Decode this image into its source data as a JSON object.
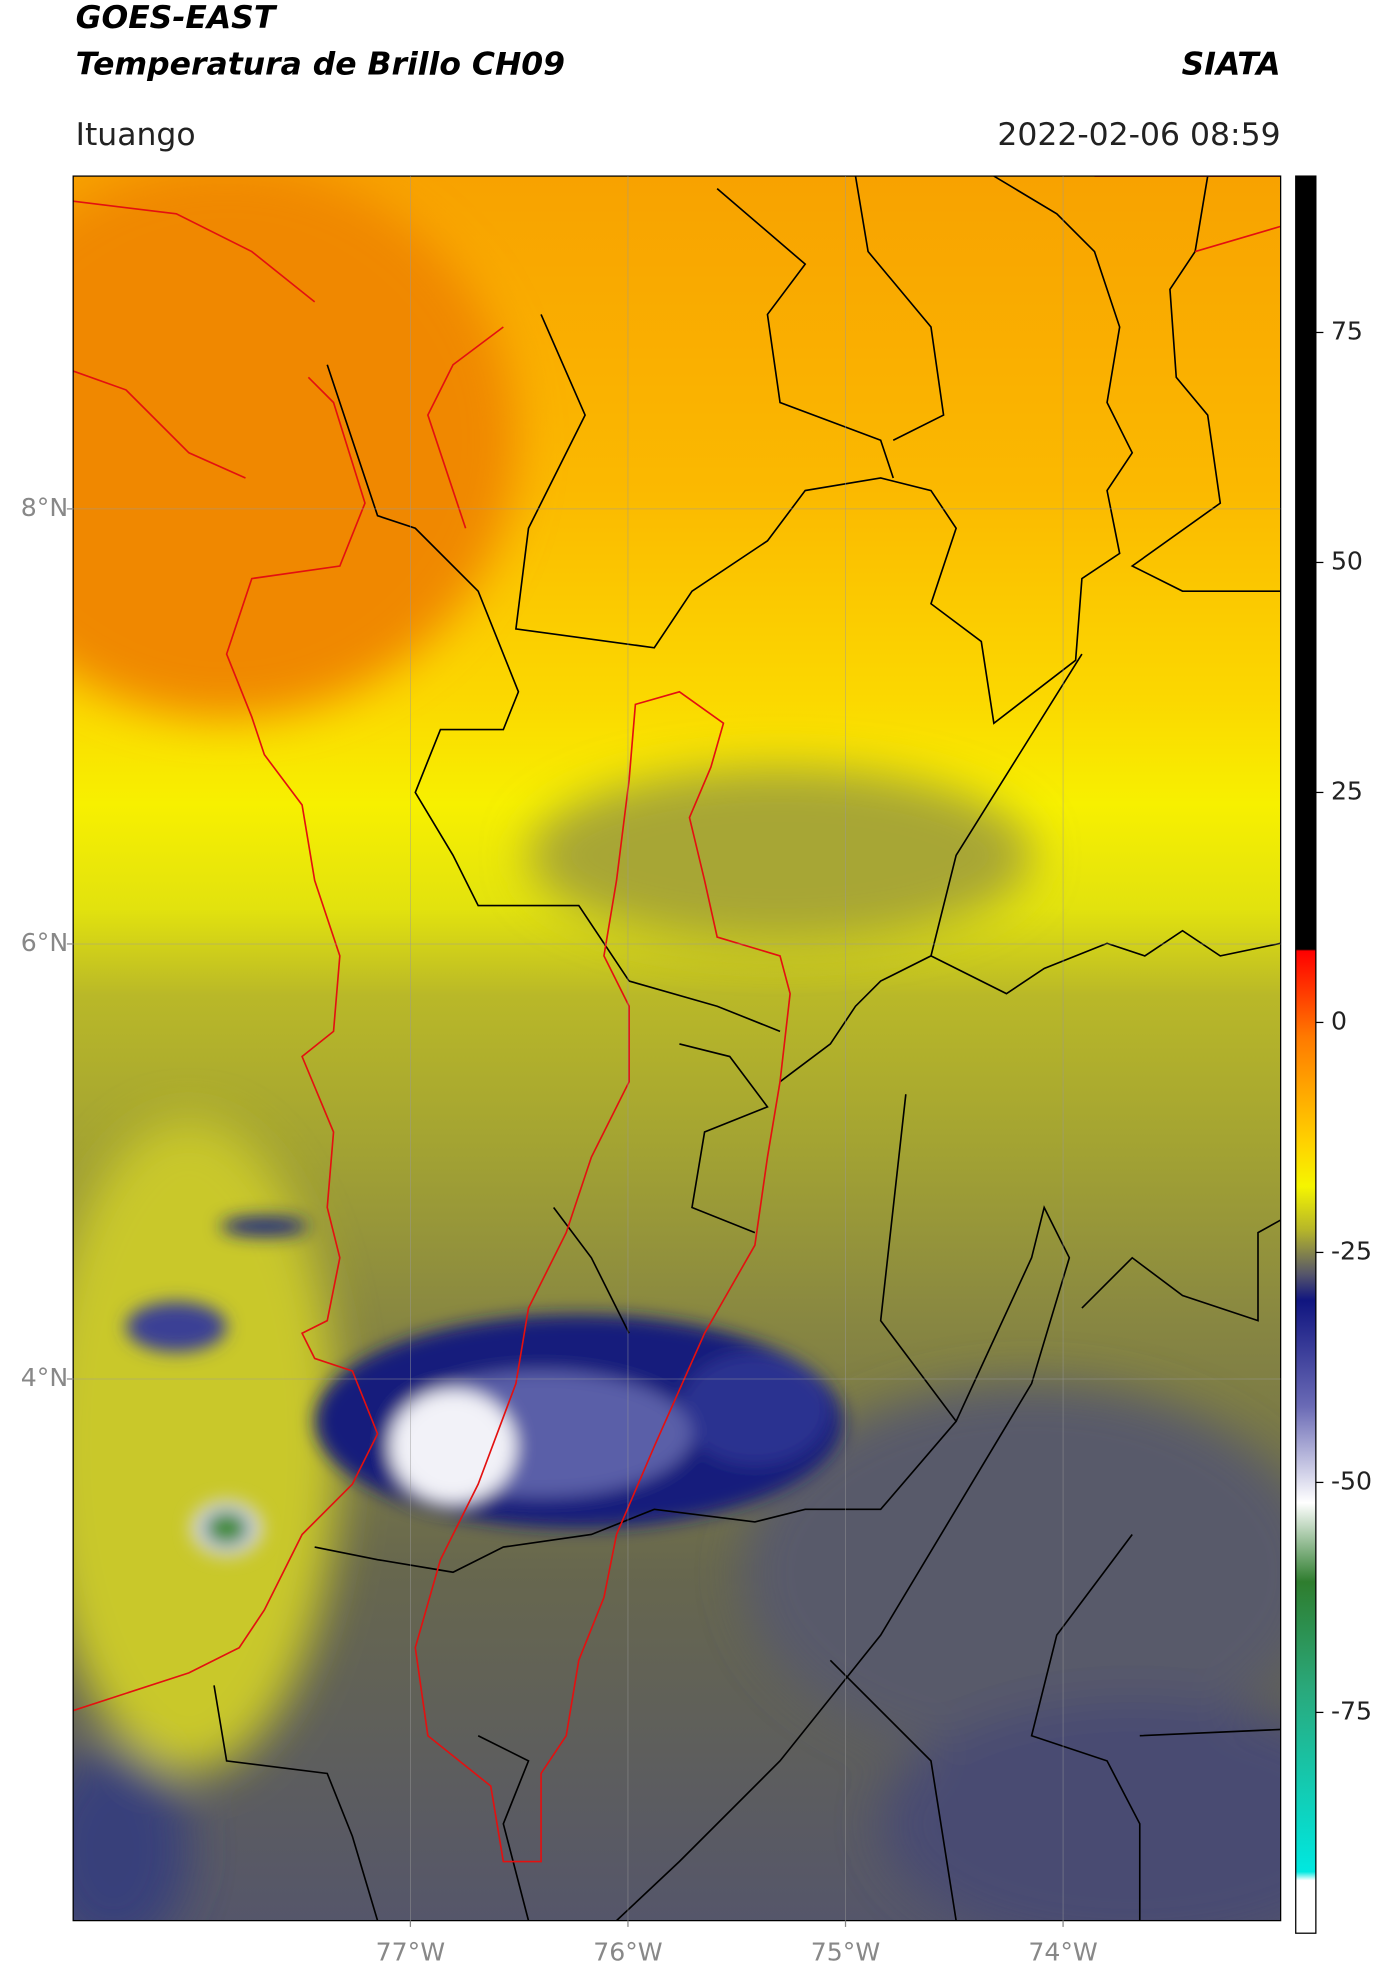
{
  "header": {
    "title": "GOES-EAST",
    "subtitle": "Temperatura de Brillo CH09",
    "brand": "SIATA",
    "location": "Ituango",
    "datetime": "2022-02-06 08:59"
  },
  "map": {
    "xlim": [
      -78.55,
      -73.0
    ],
    "ylim": [
      1.51,
      9.53
    ],
    "xticks": [
      {
        "value": -77,
        "label": "77°W"
      },
      {
        "value": -76,
        "label": "76°W"
      },
      {
        "value": -75,
        "label": "75°W"
      },
      {
        "value": -74,
        "label": "74°W"
      }
    ],
    "yticks": [
      {
        "value": 4,
        "label": "4°N"
      },
      {
        "value": 6,
        "label": "6°N"
      },
      {
        "value": 8,
        "label": "8°N"
      }
    ],
    "grid": true
  },
  "colorbar": {
    "lim": [
      -99,
      92
    ],
    "ticks": [
      -75,
      -50,
      -25,
      0,
      25,
      50,
      75
    ]
  }
}
